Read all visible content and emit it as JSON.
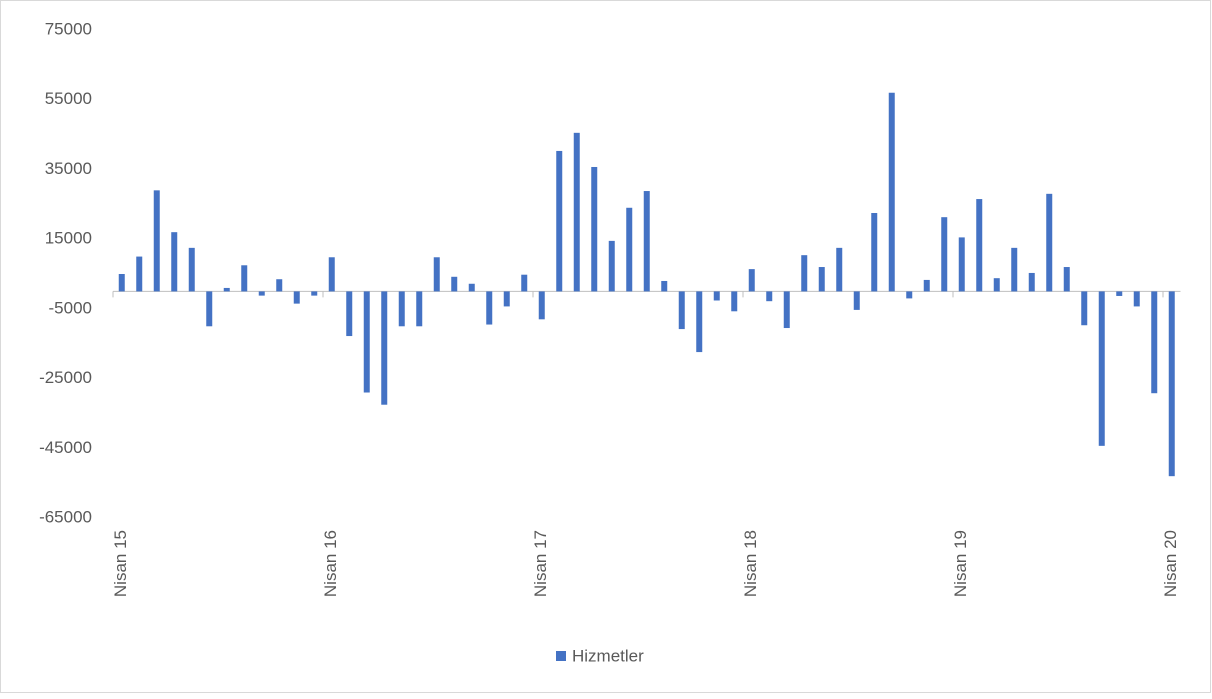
{
  "chart_data": {
    "type": "bar",
    "categories": [
      "Nisan 15",
      null,
      null,
      null,
      null,
      null,
      null,
      null,
      null,
      null,
      null,
      null,
      "Nisan 16",
      null,
      null,
      null,
      null,
      null,
      null,
      null,
      null,
      null,
      null,
      null,
      "Nisan 17",
      null,
      null,
      null,
      null,
      null,
      null,
      null,
      null,
      null,
      null,
      null,
      "Nisan 18",
      null,
      null,
      null,
      null,
      null,
      null,
      null,
      null,
      null,
      null,
      null,
      "Nisan 19",
      null,
      null,
      null,
      null,
      null,
      null,
      null,
      null,
      null,
      null,
      null,
      "Nisan 20"
    ],
    "series": [
      {
        "name": "Hizmetler",
        "color": "#4472c4",
        "values": [
          5000,
          10000,
          29000,
          17000,
          12500,
          -10000,
          1000,
          7500,
          -1200,
          3500,
          -3500,
          -1200,
          9800,
          -12800,
          -29000,
          -32500,
          -10000,
          -10000,
          9800,
          4200,
          2200,
          -9500,
          -4300,
          4800,
          -8000,
          40300,
          45500,
          35700,
          14500,
          24000,
          28800,
          3000,
          -10800,
          -17400,
          -2600,
          -5700,
          6400,
          -2800,
          -10500,
          10400,
          7000,
          12500,
          -5300,
          22500,
          57000,
          -2000,
          3300,
          21300,
          15500,
          26500,
          3800,
          12500,
          5300,
          28000,
          7000,
          -9700,
          -44300,
          -1300,
          -4300,
          -29200,
          -53000
        ]
      }
    ],
    "ylim": [
      -65000,
      75000
    ],
    "yticks": [
      -65000,
      -45000,
      -25000,
      -5000,
      15000,
      35000,
      55000,
      75000
    ],
    "grid": false,
    "legend": "bottom"
  }
}
